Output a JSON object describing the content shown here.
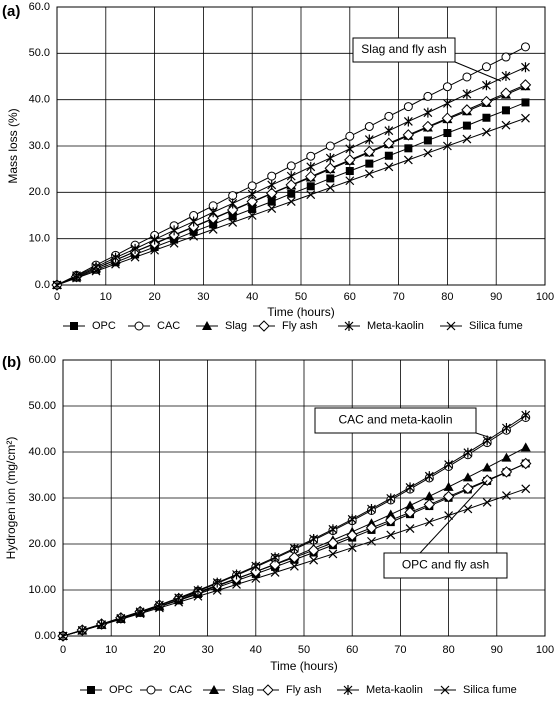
{
  "chart_data": [
    {
      "type": "line",
      "panel_label": "(a)",
      "xlabel": "Time (hours)",
      "ylabel": "Mass loss (%)",
      "xlim": [
        0,
        100
      ],
      "xticks": [
        0,
        10,
        20,
        30,
        40,
        50,
        60,
        70,
        80,
        90,
        100
      ],
      "ylim": [
        0,
        60
      ],
      "yticks": [
        {
          "value": 0,
          "label": "0.0"
        },
        {
          "value": 10,
          "label": "10.0"
        },
        {
          "value": 20,
          "label": "20.0"
        },
        {
          "value": 30,
          "label": "30.0"
        },
        {
          "value": 40,
          "label": "40.0"
        },
        {
          "value": 50,
          "label": "50.0"
        },
        {
          "value": 60,
          "label": "60.0"
        }
      ],
      "grid": true,
      "legend": "bottom",
      "annotations": [
        "Slag and fly ash"
      ],
      "x": [
        0,
        4,
        8,
        12,
        16,
        20,
        24,
        28,
        32,
        36,
        40,
        44,
        48,
        52,
        56,
        60,
        64,
        68,
        72,
        76,
        80,
        84,
        88,
        92,
        96
      ],
      "series": [
        {
          "name": "OPC",
          "color": "#000000",
          "marker": "square",
          "values": [
            0,
            1.6,
            3.3,
            4.9,
            6.6,
            8.2,
            9.8,
            11.5,
            13.1,
            14.8,
            16.4,
            18.0,
            19.7,
            21.3,
            23.0,
            24.6,
            26.2,
            27.9,
            29.5,
            31.2,
            32.8,
            34.4,
            36.1,
            37.7,
            39.4
          ]
        },
        {
          "name": "CAC",
          "color": "#000000",
          "marker": "circle",
          "values": [
            0,
            2.1,
            4.3,
            6.4,
            8.6,
            10.7,
            12.8,
            15.0,
            17.1,
            19.3,
            21.4,
            23.5,
            25.7,
            27.8,
            30.0,
            32.1,
            34.2,
            36.4,
            38.5,
            40.7,
            42.8,
            44.9,
            47.1,
            49.2,
            51.4
          ]
        },
        {
          "name": "Slag",
          "color": "#000000",
          "marker": "triangle",
          "values": [
            0,
            1.8,
            3.6,
            5.4,
            7.2,
            8.9,
            10.7,
            12.5,
            14.3,
            16.1,
            17.9,
            19.7,
            21.5,
            23.2,
            25.0,
            26.8,
            28.6,
            30.4,
            32.2,
            34.0,
            35.8,
            37.5,
            39.3,
            41.1,
            42.9
          ]
        },
        {
          "name": "Fly ash",
          "color": "#000000",
          "marker": "diamond",
          "values": [
            0,
            1.8,
            3.6,
            5.4,
            7.2,
            9.0,
            10.8,
            12.6,
            14.4,
            16.2,
            18.0,
            19.8,
            21.6,
            23.4,
            25.2,
            27.0,
            28.8,
            30.6,
            32.4,
            34.2,
            36.0,
            37.8,
            39.6,
            41.4,
            43.2
          ]
        },
        {
          "name": "Meta-kaolin",
          "color": "#000000",
          "marker": "asterisk",
          "values": [
            0,
            2.0,
            3.9,
            5.9,
            7.8,
            9.8,
            11.8,
            13.7,
            15.7,
            17.6,
            19.6,
            21.6,
            23.5,
            25.5,
            27.4,
            29.4,
            31.4,
            33.3,
            35.3,
            37.2,
            39.2,
            41.2,
            43.1,
            45.1,
            47.0
          ]
        },
        {
          "name": "Silica fume",
          "color": "#000000",
          "marker": "cross",
          "values": [
            0,
            1.5,
            3.0,
            4.5,
            6.0,
            7.5,
            9.0,
            10.5,
            12.0,
            13.5,
            15.0,
            16.5,
            18.0,
            19.5,
            21.0,
            22.5,
            24.0,
            25.5,
            27.0,
            28.5,
            30.0,
            31.5,
            33.0,
            34.5,
            36.0
          ]
        }
      ]
    },
    {
      "type": "line",
      "panel_label": "(b)",
      "xlabel": "Time (hours)",
      "ylabel": "Hydrogen ion (mg/cm²)",
      "xlim": [
        0,
        100
      ],
      "xticks": [
        0,
        10,
        20,
        30,
        40,
        50,
        60,
        70,
        80,
        90,
        100
      ],
      "ylim": [
        0,
        60
      ],
      "yticks": [
        {
          "value": 0,
          "label": "0.00"
        },
        {
          "value": 10,
          "label": "10.00"
        },
        {
          "value": 20,
          "label": "20.00"
        },
        {
          "value": 30,
          "label": "30.00"
        },
        {
          "value": 40,
          "label": "40.00"
        },
        {
          "value": 50,
          "label": "50.00"
        },
        {
          "value": 60,
          "label": "60.00"
        }
      ],
      "grid": true,
      "legend": "bottom",
      "annotations": [
        "CAC and meta-kaolin",
        "OPC and fly ash"
      ],
      "x": [
        0,
        4,
        8,
        12,
        16,
        20,
        24,
        28,
        32,
        36,
        40,
        44,
        48,
        52,
        56,
        60,
        64,
        68,
        72,
        76,
        80,
        84,
        88,
        92,
        96
      ],
      "series": [
        {
          "name": "OPC",
          "color": "#000000",
          "marker": "square",
          "values": [
            0,
            1.21,
            2.46,
            3.73,
            5.04,
            6.37,
            7.74,
            9.13,
            10.56,
            12.02,
            13.5,
            15.02,
            16.57,
            18.15,
            19.75,
            21.39,
            23.06,
            24.76,
            26.49,
            28.25,
            30.04,
            31.86,
            33.71,
            35.6,
            37.51
          ]
        },
        {
          "name": "CAC",
          "color": "#000000",
          "marker": "circle",
          "values": [
            0,
            1.19,
            2.45,
            3.78,
            5.18,
            6.64,
            8.18,
            9.78,
            11.45,
            13.19,
            15.0,
            16.88,
            18.82,
            20.84,
            22.92,
            25.07,
            27.29,
            29.57,
            31.93,
            34.36,
            36.85,
            39.41,
            42.04,
            44.74,
            47.5
          ]
        },
        {
          "name": "Slag",
          "color": "#000000",
          "marker": "triangle",
          "values": [
            0,
            1.2,
            2.45,
            3.74,
            5.07,
            6.45,
            7.87,
            9.34,
            10.85,
            12.4,
            14.0,
            15.64,
            17.33,
            19.06,
            20.84,
            22.65,
            24.52,
            26.42,
            28.37,
            30.37,
            32.41,
            34.49,
            36.62,
            38.79,
            41.0
          ]
        },
        {
          "name": "Fly ash",
          "color": "#000000",
          "marker": "diamond",
          "values": [
            0,
            1.3,
            2.61,
            3.96,
            5.32,
            6.71,
            8.12,
            9.56,
            11.01,
            12.5,
            14.0,
            15.53,
            17.08,
            18.65,
            20.25,
            21.87,
            23.51,
            25.18,
            26.87,
            28.58,
            30.32,
            32.08,
            33.86,
            35.67,
            37.5
          ]
        },
        {
          "name": "Meta-kaolin",
          "color": "#000000",
          "marker": "asterisk",
          "values": [
            0,
            1.21,
            2.49,
            3.84,
            5.26,
            6.74,
            8.3,
            9.92,
            11.61,
            13.37,
            15.2,
            17.1,
            19.06,
            21.1,
            23.2,
            25.37,
            27.61,
            29.92,
            32.3,
            34.75,
            37.26,
            39.84,
            42.49,
            45.22,
            48.0
          ]
        },
        {
          "name": "Silica fume",
          "color": "#000000",
          "marker": "cross",
          "values": [
            0,
            1.2,
            2.4,
            3.63,
            4.86,
            6.1,
            7.36,
            8.62,
            9.9,
            11.2,
            12.5,
            13.81,
            15.14,
            16.48,
            17.83,
            19.2,
            20.57,
            21.96,
            23.36,
            24.77,
            26.19,
            27.62,
            29.07,
            30.53,
            32.0
          ]
        }
      ]
    }
  ]
}
